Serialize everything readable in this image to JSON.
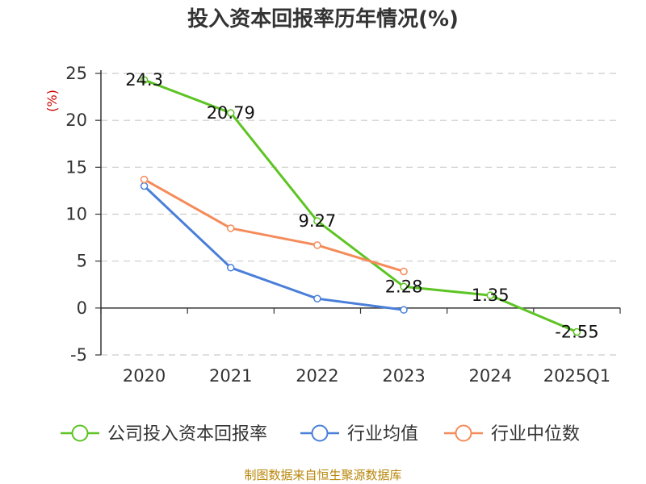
{
  "chart_data": {
    "type": "line",
    "title": "投入资本回报率历年情况(%)",
    "ylabel": "(%)",
    "categories": [
      "2020",
      "2021",
      "2022",
      "2023",
      "2024",
      "2025Q1"
    ],
    "ylim": [
      -5,
      25
    ],
    "yticks": [
      25,
      20,
      15,
      10,
      5,
      0,
      -5
    ],
    "grid": true,
    "legend_position": "bottom",
    "series": [
      {
        "name": "公司投入资本回报率",
        "color": "#5cc423",
        "values": [
          24.3,
          20.79,
          9.27,
          2.28,
          1.35,
          -2.55
        ],
        "labels": [
          "24.3",
          "20.79",
          "9.27",
          "2.28",
          "1.35",
          "-2.55"
        ]
      },
      {
        "name": "行业均值",
        "color": "#4a7fd9",
        "values": [
          13.0,
          4.3,
          1.0,
          -0.2,
          null,
          null
        ]
      },
      {
        "name": "行业中位数",
        "color": "#f58b5a",
        "values": [
          13.7,
          8.5,
          6.7,
          3.9,
          null,
          null
        ]
      }
    ]
  },
  "source": "制图数据来自恒生聚源数据库"
}
